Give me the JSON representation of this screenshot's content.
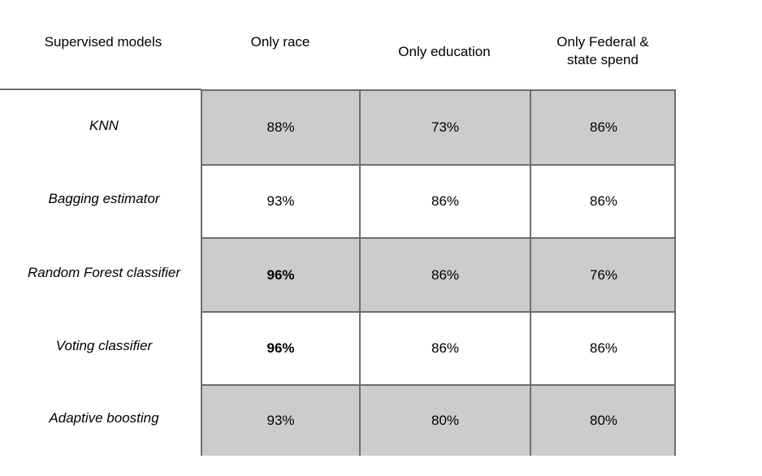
{
  "chart_data": {
    "type": "table",
    "columns": [
      "Supervised models",
      "Only race",
      "Only education",
      "Only Federal &\nstate spend"
    ],
    "rows": [
      {
        "model": "KNN",
        "values": [
          "88%",
          "73%",
          "86%"
        ],
        "bold": [
          false,
          false,
          false
        ],
        "shaded": true
      },
      {
        "model": "Bagging estimator",
        "values": [
          "93%",
          "86%",
          "86%"
        ],
        "bold": [
          false,
          false,
          false
        ],
        "shaded": false
      },
      {
        "model": "Random Forest classifier",
        "values": [
          "96%",
          "86%",
          "76%"
        ],
        "bold": [
          true,
          false,
          false
        ],
        "shaded": true
      },
      {
        "model": "Voting classifier",
        "values": [
          "96%",
          "86%",
          "86%"
        ],
        "bold": [
          true,
          false,
          false
        ],
        "shaded": false
      },
      {
        "model": "Adaptive boosting",
        "values": [
          "93%",
          "80%",
          "80%"
        ],
        "bold": [
          false,
          false,
          false
        ],
        "shaded": true
      }
    ],
    "colors": {
      "shaded_row": "#cccccc",
      "border": "#6e6e6e"
    }
  }
}
